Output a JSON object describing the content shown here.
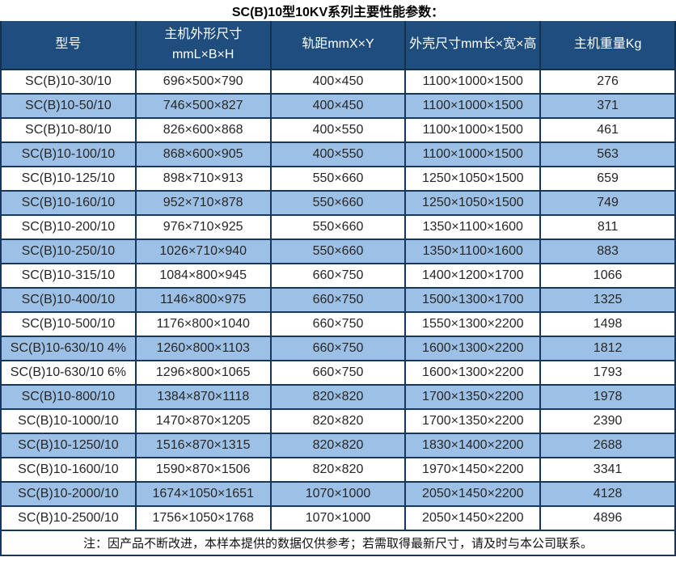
{
  "title": "SC(B)10型10KV系列主要性能参数：",
  "note": "注：因产品不断改进，本样本提供的数据仅供参考；若需取得最新尺寸，请及时与本公司联系。",
  "colors": {
    "header_bg": "#1E4D7E",
    "stripe_bg": "#9DC1E6",
    "border": "#17375E",
    "header_text": "#FFFFFF",
    "body_text": "#262626"
  },
  "table": {
    "columns": [
      {
        "label": "型号"
      },
      {
        "label": "主机外形尺寸",
        "label2": "mmL×B×H"
      },
      {
        "label": "轨距mmX×Y"
      },
      {
        "label": "外壳尺寸mm长×宽×高"
      },
      {
        "label": "主机重量Kg"
      }
    ],
    "rows": [
      [
        "SC(B)10-30/10",
        "696×500×790",
        "400×450",
        "1100×1000×1500",
        "276"
      ],
      [
        "SC(B)10-50/10",
        "746×500×827",
        "400×450",
        "1100×1000×1500",
        "371"
      ],
      [
        "SC(B)10-80/10",
        "826×600×868",
        "400×550",
        "1100×1000×1500",
        "461"
      ],
      [
        "SC(B)10-100/10",
        "868×600×905",
        "400×550",
        "1100×1000×1500",
        "563"
      ],
      [
        "SC(B)10-125/10",
        "898×710×913",
        "550×660",
        "1250×1050×1500",
        "659"
      ],
      [
        "SC(B)10-160/10",
        "952×710×878",
        "550×660",
        "1250×1050×1500",
        "749"
      ],
      [
        "SC(B)10-200/10",
        "976×710×925",
        "550×660",
        "1350×1100×1600",
        "811"
      ],
      [
        "SC(B)10-250/10",
        "1026×710×940",
        "550×660",
        "1350×1100×1600",
        "883"
      ],
      [
        "SC(B)10-315/10",
        "1084×800×945",
        "660×750",
        "1400×1200×1700",
        "1066"
      ],
      [
        "SC(B)10-400/10",
        "1146×800×975",
        "660×750",
        "1500×1300×1700",
        "1325"
      ],
      [
        "SC(B)10-500/10",
        "1176×800×1040",
        "660×750",
        "1550×1300×2200",
        "1498"
      ],
      [
        "SC(B)10-630/10 4%",
        "1260×800×1103",
        "660×750",
        "1600×1300×2200",
        "1812"
      ],
      [
        "SC(B)10-630/10 6%",
        "1296×800×1065",
        "660×750",
        "1600×1300×2200",
        "1793"
      ],
      [
        "SC(B)10-800/10",
        "1384×870×1118",
        "820×820",
        "1700×1350×2200",
        "1978"
      ],
      [
        "SC(B)10-1000/10",
        "1470×870×1205",
        "820×820",
        "1700×1350×2200",
        "2390"
      ],
      [
        "SC(B)10-1250/10",
        "1516×870×1315",
        "820×820",
        "1830×1400×2200",
        "2688"
      ],
      [
        "SC(B)10-1600/10",
        "1590×870×1506",
        "820×820",
        "1970×1450×2200",
        "3341"
      ],
      [
        "SC(B)10-2000/10",
        "1674×1050×1651",
        "1070×1000",
        "2050×1450×2200",
        "4128"
      ],
      [
        "SC(B)10-2500/10",
        "1756×1050×1768",
        "1070×1000",
        "2050×1450×2200",
        "4896"
      ]
    ]
  }
}
